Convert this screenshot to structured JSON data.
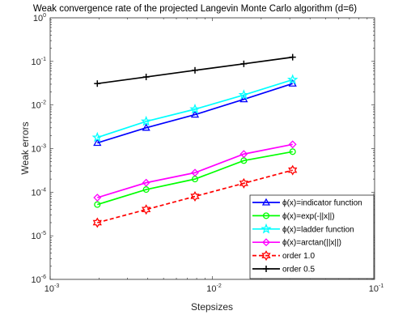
{
  "chart_data": {
    "type": "line",
    "title": "Weak convergence rate of the projected Langevin Monte Carlo algorithm (d=6)",
    "xlabel": "Stepsizes",
    "ylabel": "Weak errors",
    "xscale": "log",
    "yscale": "log",
    "xlim": [
      0.001,
      0.1
    ],
    "ylim": [
      1e-06,
      1
    ],
    "x_ticks": [
      {
        "base": "10",
        "exp": "-3",
        "value": 0.001
      },
      {
        "base": "10",
        "exp": "-2",
        "value": 0.01
      },
      {
        "base": "10",
        "exp": "-1",
        "value": 0.1
      }
    ],
    "y_ticks": [
      {
        "base": "10",
        "exp": "-6",
        "value": 1e-06
      },
      {
        "base": "10",
        "exp": "-5",
        "value": 1e-05
      },
      {
        "base": "10",
        "exp": "-4",
        "value": 0.0001
      },
      {
        "base": "10",
        "exp": "-3",
        "value": 0.001
      },
      {
        "base": "10",
        "exp": "-2",
        "value": 0.01
      },
      {
        "base": "10",
        "exp": "-1",
        "value": 0.1
      },
      {
        "base": "10",
        "exp": "0",
        "value": 1
      }
    ],
    "x": [
      0.001953125,
      0.00390625,
      0.0078125,
      0.015625,
      0.03125
    ],
    "grid": false,
    "legend_position": "bottom-right",
    "series": [
      {
        "name": "ϕ(x)=indicator function",
        "color": "#0000ff",
        "marker": "triangle",
        "line_style": "solid",
        "values": [
          0.00135,
          0.003,
          0.006,
          0.0135,
          0.031
        ]
      },
      {
        "name": "ϕ(x)=exp(-||x||)",
        "color": "#00ff00",
        "marker": "circle",
        "line_style": "solid",
        "values": [
          5.2e-05,
          0.000115,
          0.0002,
          0.00053,
          0.00085
        ]
      },
      {
        "name": "ϕ(x)=ladder function",
        "color": "#00ffff",
        "marker": "star",
        "line_style": "solid",
        "values": [
          0.0018,
          0.0042,
          0.008,
          0.017,
          0.038
        ]
      },
      {
        "name": "ϕ(x)=arctan(||x||)",
        "color": "#ff00ff",
        "marker": "diamond",
        "line_style": "solid",
        "values": [
          7.5e-05,
          0.000165,
          0.00028,
          0.00075,
          0.00125
        ]
      },
      {
        "name": "order 1.0",
        "color": "#ff0000",
        "marker": "hexagram",
        "line_style": "dashed",
        "values": [
          2e-05,
          4e-05,
          8e-05,
          0.00016,
          0.00032
        ]
      },
      {
        "name": "order 0.5",
        "color": "#000000",
        "marker": "plus",
        "line_style": "solid",
        "values": [
          0.031,
          0.044,
          0.0625,
          0.088,
          0.125
        ]
      }
    ]
  }
}
